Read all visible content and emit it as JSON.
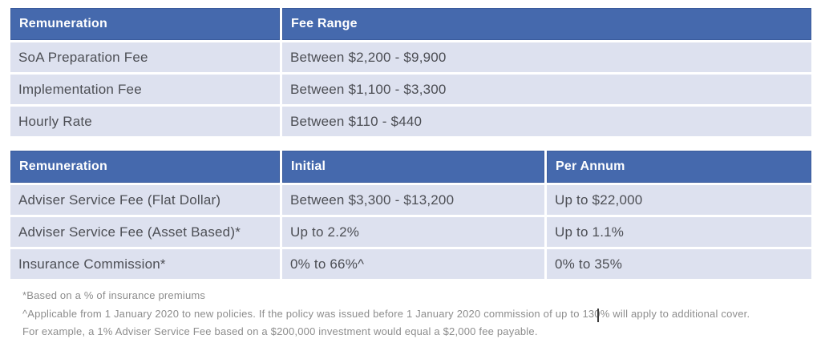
{
  "colors": {
    "header_bg": "#4569ad",
    "header_text": "#ffffff",
    "row_bg": "#dde1ef",
    "cell_text": "#4c4e54",
    "footnote_text": "#8d8d8d",
    "page_bg": "#ffffff"
  },
  "fee_table": {
    "columns": {
      "col1": "Remuneration",
      "col2": "Fee Range"
    },
    "rows": [
      {
        "remuneration": "SoA Preparation Fee",
        "fee_range": "Between $2,200 - $9,900"
      },
      {
        "remuneration": "Implementation Fee",
        "fee_range": "Between $1,100 - $3,300"
      },
      {
        "remuneration": "Hourly Rate",
        "fee_range": "Between $110 - $440"
      }
    ]
  },
  "service_table": {
    "columns": {
      "col1": "Remuneration",
      "col2": "Initial",
      "col3": "Per Annum"
    },
    "rows": [
      {
        "remuneration": "Adviser Service Fee (Flat Dollar)",
        "initial": "Between $3,300 - $13,200",
        "per_annum": "Up to $22,000"
      },
      {
        "remuneration": "Adviser Service Fee (Asset Based)*",
        "initial": "Up to 2.2%",
        "per_annum": "Up to 1.1%"
      },
      {
        "remuneration": "Insurance Commission*",
        "initial": "0% to 66%^",
        "per_annum": "0% to 35%"
      }
    ]
  },
  "footnotes": {
    "line1": "*Based on a % of insurance premiums",
    "line2": "^Applicable from 1 January 2020 to new policies. If the policy was issued before 1 January 2020 commission of up to 130% will apply to additional cover.",
    "line3": "For example, a 1% Adviser Service Fee based on a $200,000 investment would equal a $2,000 fee payable."
  }
}
